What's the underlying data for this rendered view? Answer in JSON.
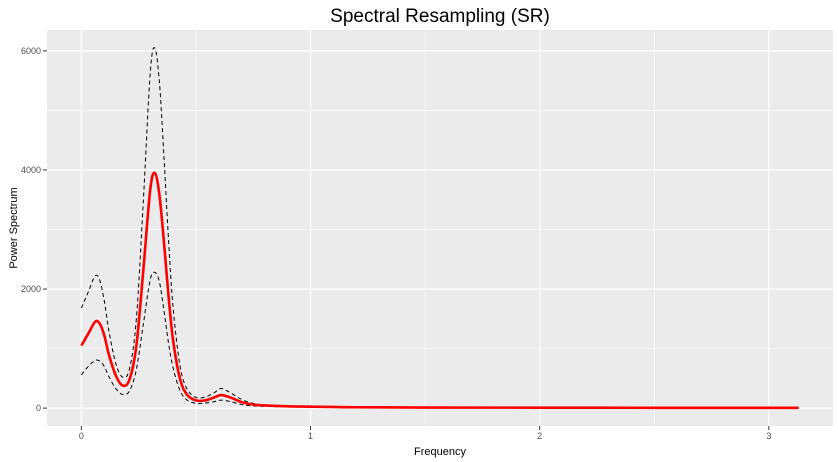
{
  "chart_data": {
    "type": "line",
    "title": "Spectral Resampling (SR)",
    "xlabel": "Frequency",
    "ylabel": "Power Spectrum",
    "xlim": [
      -0.15,
      3.28
    ],
    "ylim": [
      -300,
      6350
    ],
    "x_ticks": [
      0,
      1,
      2,
      3
    ],
    "x_tick_labels": [
      "0",
      "1",
      "2",
      "3"
    ],
    "y_ticks": [
      0,
      2000,
      4000,
      6000
    ],
    "y_tick_labels": [
      "0",
      "2000",
      "4000",
      "6000"
    ],
    "grid": true,
    "legend": "none",
    "colors": {
      "panel": "#ebebeb",
      "grid": "#ffffff",
      "estimate": "#ff0000",
      "bounds": "#000000"
    },
    "x": [
      0.0,
      0.03,
      0.06,
      0.08,
      0.1,
      0.12,
      0.15,
      0.18,
      0.21,
      0.24,
      0.27,
      0.3,
      0.32,
      0.34,
      0.36,
      0.38,
      0.4,
      0.43,
      0.46,
      0.5,
      0.54,
      0.58,
      0.61,
      0.65,
      0.7,
      0.75,
      0.8,
      0.9,
      1.0,
      1.1,
      1.2,
      1.5,
      2.0,
      2.5,
      3.0,
      3.13
    ],
    "series": [
      {
        "values": [
          1050,
          1250,
          1450,
          1420,
          1220,
          900,
          550,
          380,
          480,
          1050,
          2300,
          3650,
          3950,
          3600,
          2800,
          1900,
          1150,
          500,
          230,
          130,
          130,
          180,
          220,
          180,
          100,
          60,
          45,
          30,
          25,
          20,
          15,
          10,
          8,
          6,
          5,
          5
        ]
      },
      {
        "values": [
          1680,
          1950,
          2220,
          2150,
          1800,
          1300,
          750,
          520,
          660,
          1500,
          3450,
          5600,
          6050,
          5500,
          4250,
          2850,
          1700,
          720,
          330,
          180,
          185,
          260,
          330,
          260,
          145,
          80,
          55,
          35,
          28,
          22,
          17,
          12,
          10,
          8,
          7,
          7
        ]
      },
      {
        "values": [
          560,
          700,
          800,
          790,
          700,
          530,
          330,
          230,
          290,
          650,
          1400,
          2150,
          2280,
          2130,
          1650,
          1100,
          680,
          300,
          140,
          80,
          85,
          110,
          135,
          110,
          60,
          38,
          30,
          20,
          16,
          12,
          9,
          6,
          5,
          4,
          3,
          3
        ]
      }
    ]
  }
}
